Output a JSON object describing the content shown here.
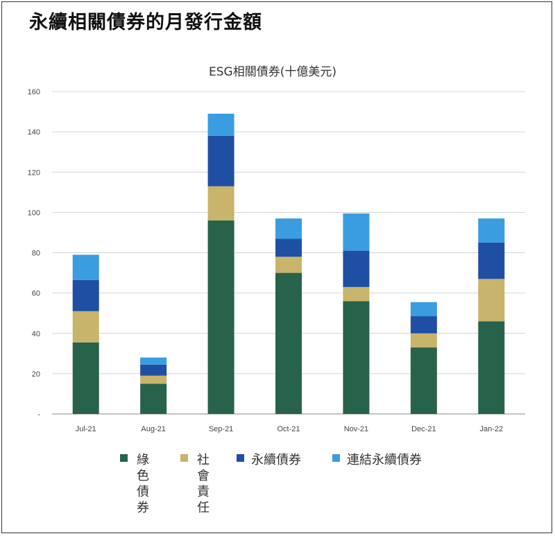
{
  "page": {
    "title": "永續相關債券的月發行金額"
  },
  "chart_data": {
    "type": "bar",
    "stacked": true,
    "title": "ESG相關債券(十億美元)",
    "categories": [
      "Jul-21",
      "Aug-21",
      "Sep-21",
      "Oct-21",
      "Nov-21",
      "Dec-21",
      "Jan-22"
    ],
    "series": [
      {
        "name": "綠色債券",
        "color": "#27634a",
        "values": [
          35.5,
          15,
          96,
          70,
          56,
          33,
          46
        ]
      },
      {
        "name": "社會責任",
        "color": "#c8b46a",
        "values": [
          15.5,
          4,
          17,
          8,
          7,
          7,
          21
        ]
      },
      {
        "name": "永續債券",
        "color": "#1f4fa3",
        "values": [
          15.5,
          5.5,
          25,
          9,
          18,
          8.5,
          18
        ]
      },
      {
        "name": "連結永續債券",
        "color": "#3a9de0",
        "values": [
          12.5,
          3.5,
          11,
          10,
          18.5,
          7,
          12
        ]
      }
    ],
    "ylim": [
      0,
      160
    ],
    "yticks": [
      "-",
      "20",
      "40",
      "60",
      "80",
      "100",
      "120",
      "140",
      "160"
    ],
    "grid": true,
    "legend_position": "bottom"
  }
}
